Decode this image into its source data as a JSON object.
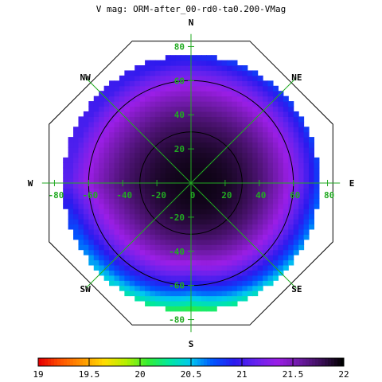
{
  "chart_data": {
    "type": "heatmap",
    "projection": "polar",
    "title": "V mag: ORM-after_00-rd0-ta0.200-VMag",
    "directions": [
      "N",
      "NE",
      "E",
      "SE",
      "S",
      "SW",
      "W",
      "NW"
    ],
    "axis_ticks": [
      "80",
      "60",
      "40",
      "20",
      "0",
      "-20",
      "-40",
      "-60",
      "-80"
    ],
    "axis_range": [
      -90,
      90
    ],
    "contour_levels_radius": [
      30,
      60
    ],
    "colorbar": {
      "min": 19,
      "max": 22,
      "tick_labels": [
        "19",
        "19.5",
        "20",
        "20.5",
        "21",
        "21.5",
        "22"
      ],
      "colors": [
        "#e80000",
        "#ff5500",
        "#ff9900",
        "#ffdd00",
        "#b4f000",
        "#33ee33",
        "#00e8a0",
        "#00c8f0",
        "#0055ff",
        "#2a1aee",
        "#6622ee",
        "#9b1ee6",
        "#6e1aa6",
        "#3c0f5a",
        "#000000"
      ]
    },
    "field": {
      "center_value": 21.95,
      "edge_value_north": 20.9,
      "edge_value_south": 19.9,
      "edge_value_east": 20.6,
      "edge_value_west": 21.1,
      "data_radius_limit": 75
    },
    "grid": true,
    "colors": {
      "grid": "#22aa22",
      "ring": "#000000"
    }
  }
}
